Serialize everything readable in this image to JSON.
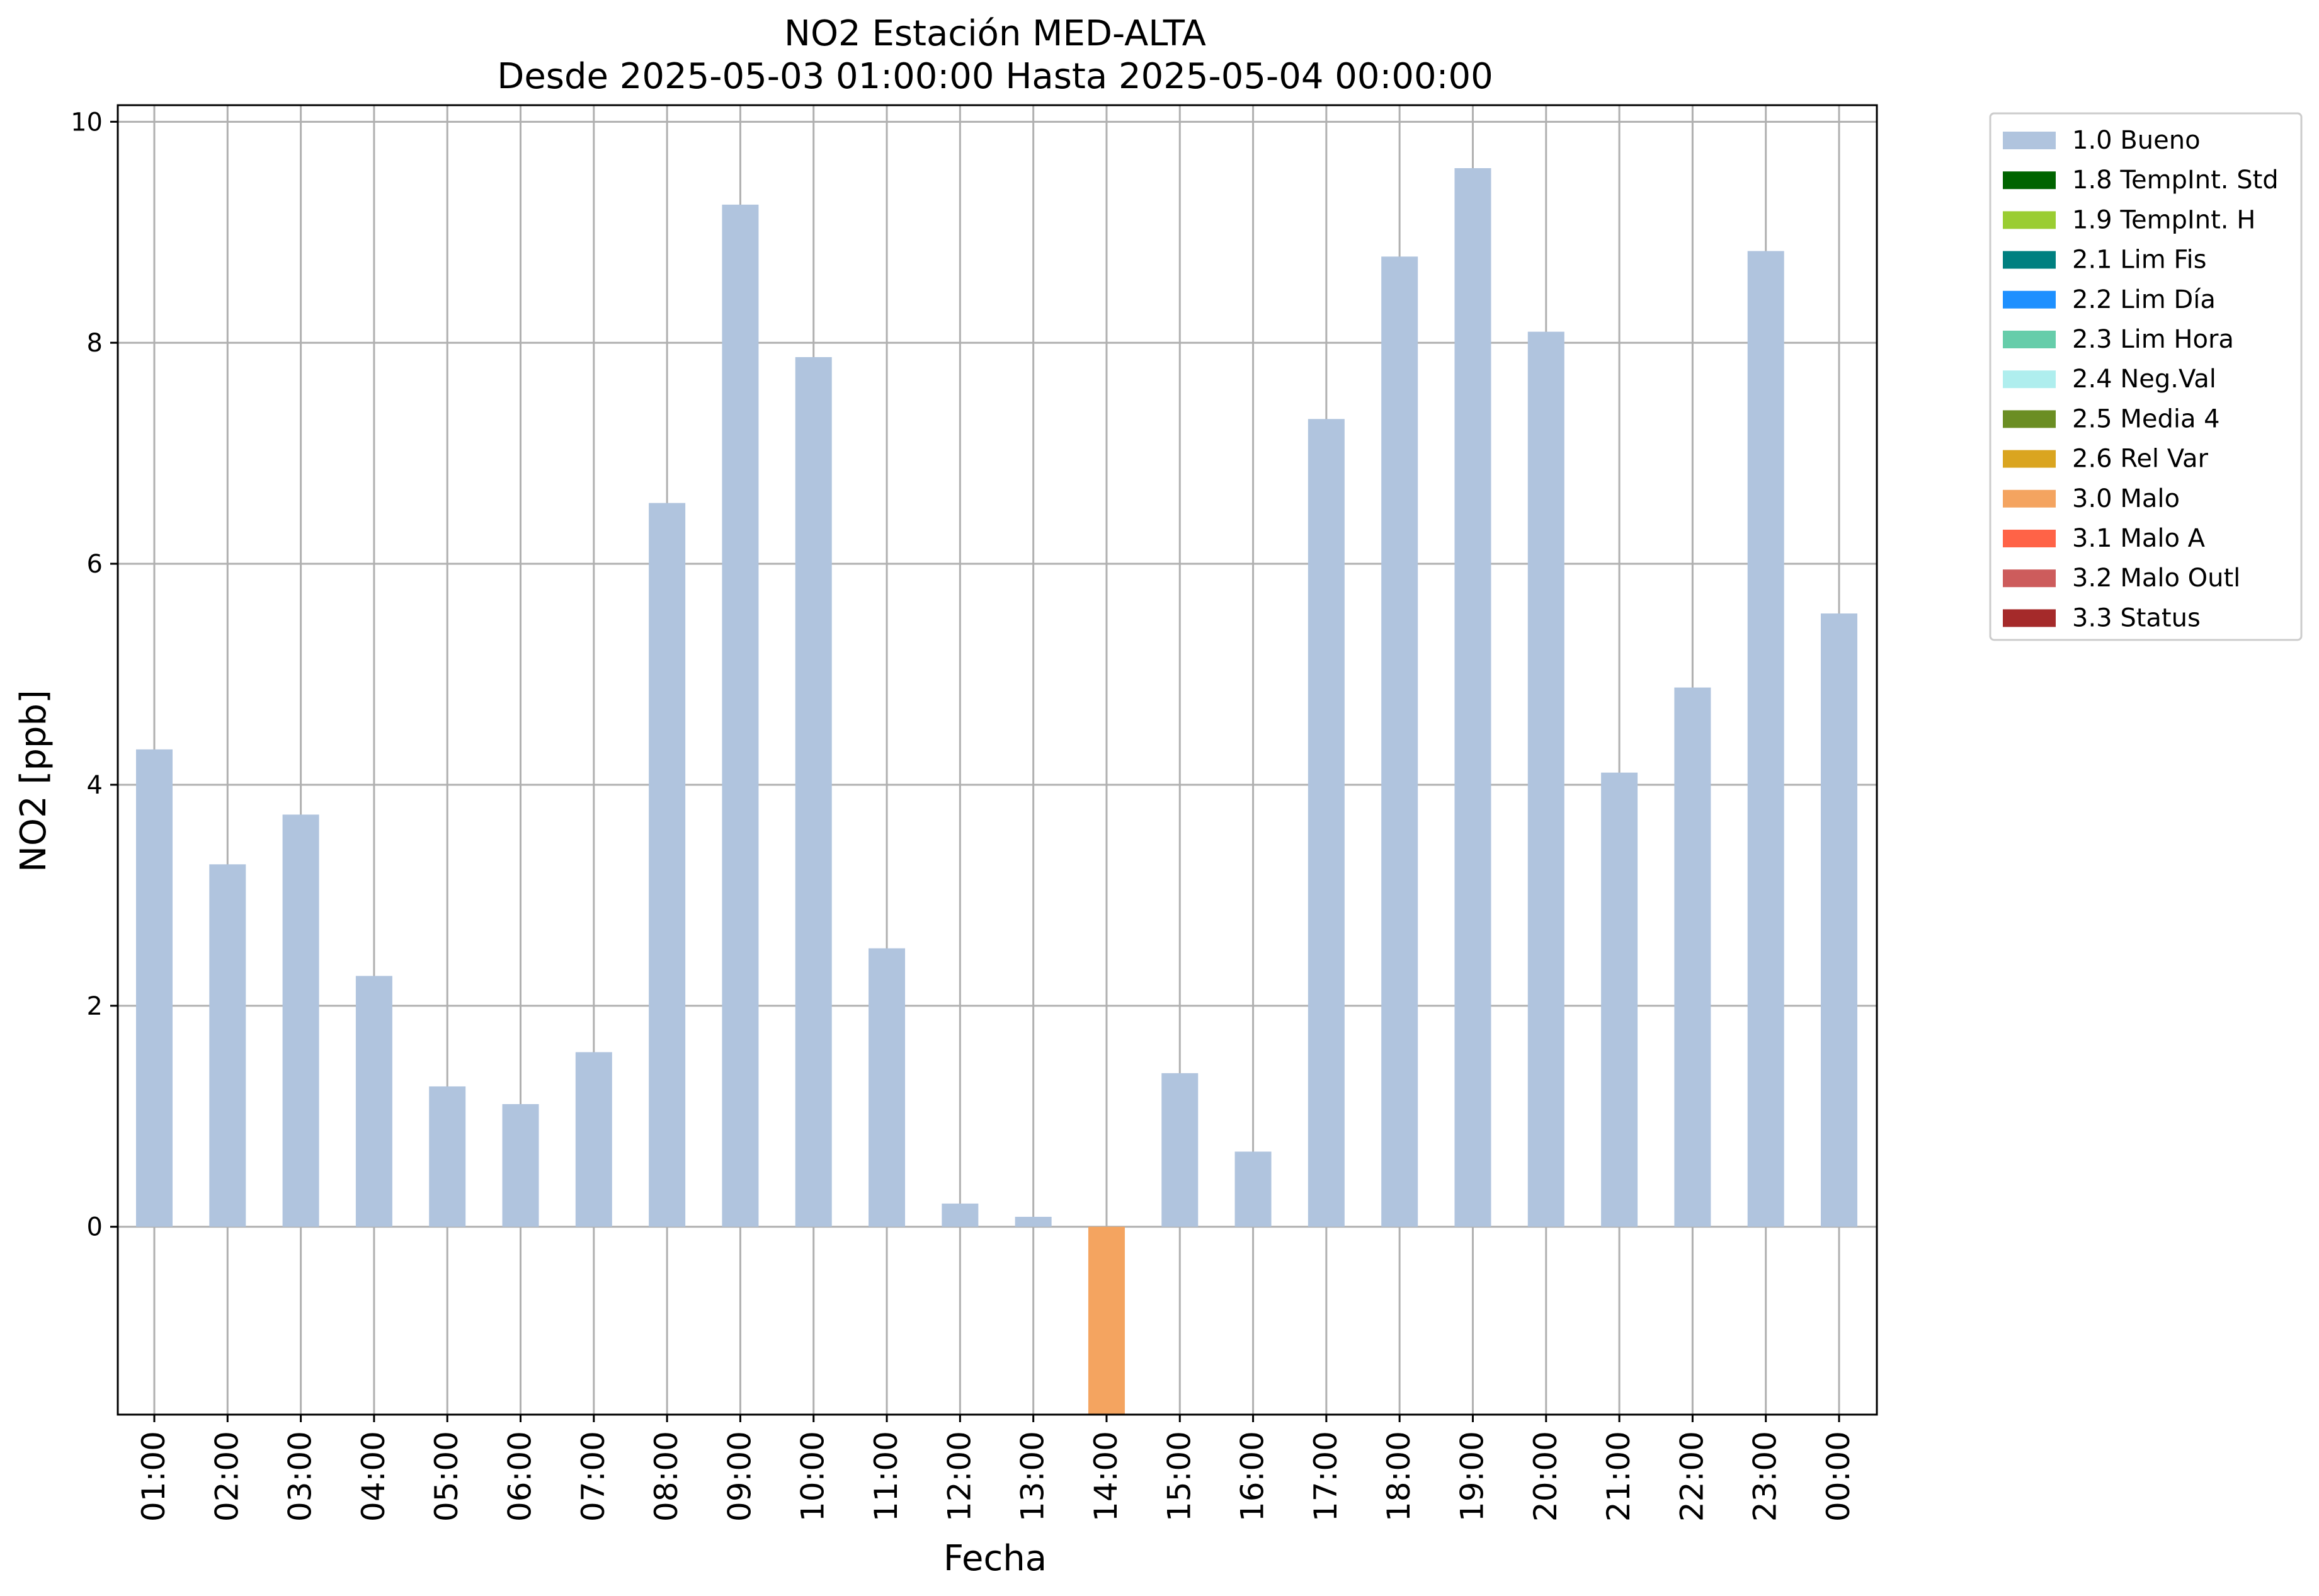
{
  "chart_data": {
    "type": "bar",
    "title": "NO2 Estación MED-ALTA",
    "subtitle": "Desde 2025-05-03 01:00:00 Hasta 2025-05-04 00:00:00",
    "xlabel": "Fecha",
    "ylabel": "NO2 [ppb]",
    "ylim": [
      -1.7,
      10.15
    ],
    "yticks": [
      0,
      2,
      4,
      6,
      8,
      10
    ],
    "grid": true,
    "legend_position": "outside-top-right",
    "categories": [
      "01:00",
      "02:00",
      "03:00",
      "04:00",
      "05:00",
      "06:00",
      "07:00",
      "08:00",
      "09:00",
      "10:00",
      "11:00",
      "12:00",
      "13:00",
      "14:00",
      "15:00",
      "16:00",
      "17:00",
      "18:00",
      "19:00",
      "20:00",
      "21:00",
      "22:00",
      "23:00",
      "00:00"
    ],
    "values": [
      4.32,
      3.28,
      3.73,
      2.27,
      1.27,
      1.11,
      1.58,
      6.55,
      9.25,
      7.87,
      2.52,
      0.21,
      0.09,
      -1.7,
      1.39,
      0.68,
      7.31,
      8.78,
      9.58,
      8.1,
      4.11,
      4.88,
      8.83,
      5.55
    ],
    "quality_flags": [
      "1.0 Bueno",
      "1.0 Bueno",
      "1.0 Bueno",
      "1.0 Bueno",
      "1.0 Bueno",
      "1.0 Bueno",
      "1.0 Bueno",
      "1.0 Bueno",
      "1.0 Bueno",
      "1.0 Bueno",
      "1.0 Bueno",
      "1.0 Bueno",
      "1.0 Bueno",
      "3.0 Malo",
      "1.0 Bueno",
      "1.0 Bueno",
      "1.0 Bueno",
      "1.0 Bueno",
      "1.0 Bueno",
      "1.0 Bueno",
      "1.0 Bueno",
      "1.0 Bueno",
      "1.0 Bueno",
      "1.0 Bueno"
    ],
    "legend": [
      {
        "label": "1.0 Bueno",
        "color": "#b0c4de"
      },
      {
        "label": "1.8 TempInt. Std",
        "color": "#006400"
      },
      {
        "label": "1.9 TempInt. H",
        "color": "#9acd32"
      },
      {
        "label": "2.1 Lim Fis",
        "color": "#008080"
      },
      {
        "label": "2.2 Lim Día",
        "color": "#1e90ff"
      },
      {
        "label": "2.3 Lim Hora",
        "color": "#66cdaa"
      },
      {
        "label": "2.4 Neg.Val",
        "color": "#afeeee"
      },
      {
        "label": "2.5 Media 4",
        "color": "#6b8e23"
      },
      {
        "label": "2.6 Rel Var",
        "color": "#daa520"
      },
      {
        "label": "3.0 Malo",
        "color": "#f4a460"
      },
      {
        "label": "3.1 Malo A",
        "color": "#ff6347"
      },
      {
        "label": "3.2 Malo Outl",
        "color": "#cd5c5c"
      },
      {
        "label": "3.3 Status",
        "color": "#a52a2a"
      }
    ]
  }
}
